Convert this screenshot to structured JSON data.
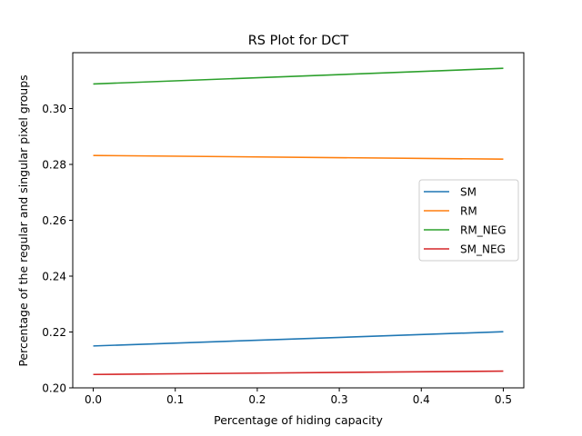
{
  "chart_data": {
    "type": "line",
    "title": "RS Plot for DCT",
    "xlabel": "Percentage of hiding capacity",
    "ylabel": "Percentage of the regular and singular pixel groups",
    "x": [
      0.0,
      0.5
    ],
    "xticks": [
      "0.0",
      "0.1",
      "0.2",
      "0.3",
      "0.4",
      "0.5"
    ],
    "xtick_values": [
      0.0,
      0.1,
      0.2,
      0.3,
      0.4,
      0.5
    ],
    "yticks": [
      "0.20",
      "0.22",
      "0.24",
      "0.26",
      "0.28",
      "0.30"
    ],
    "ytick_values": [
      0.2,
      0.22,
      0.24,
      0.26,
      0.28,
      0.3
    ],
    "xlim": [
      -0.025,
      0.525
    ],
    "ylim": [
      0.2,
      0.32
    ],
    "grid": false,
    "legend_position": "center-right",
    "series": [
      {
        "name": "SM",
        "color": "#1f77b4",
        "values": [
          0.215,
          0.2201
        ]
      },
      {
        "name": "RM",
        "color": "#ff7f0e",
        "values": [
          0.2832,
          0.2819
        ]
      },
      {
        "name": "RM_NEG",
        "color": "#2ca02c",
        "values": [
          0.3088,
          0.3144
        ]
      },
      {
        "name": "SM_NEG",
        "color": "#d62728",
        "values": [
          0.2048,
          0.206
        ]
      }
    ]
  }
}
